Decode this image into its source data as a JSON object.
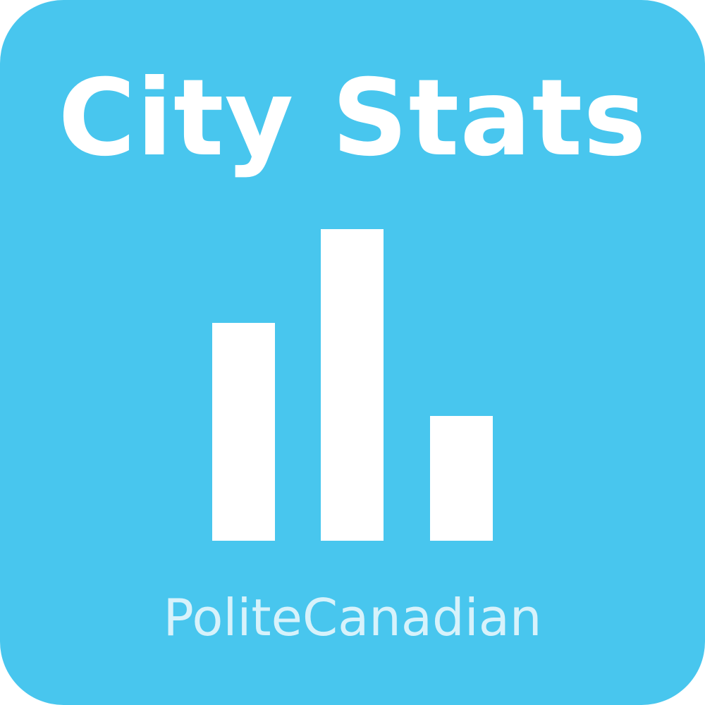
{
  "app": {
    "title": "City Stats",
    "author": "PoliteCanadian"
  },
  "logo": {
    "icon": "bar-chart-icon",
    "bar_levels": [
      0.7,
      1.0,
      0.4
    ]
  },
  "colors": {
    "background": "#48C6EE",
    "bar": "#FFFFFF",
    "title": "#FFFFFF",
    "author": "#D7F2FB"
  }
}
